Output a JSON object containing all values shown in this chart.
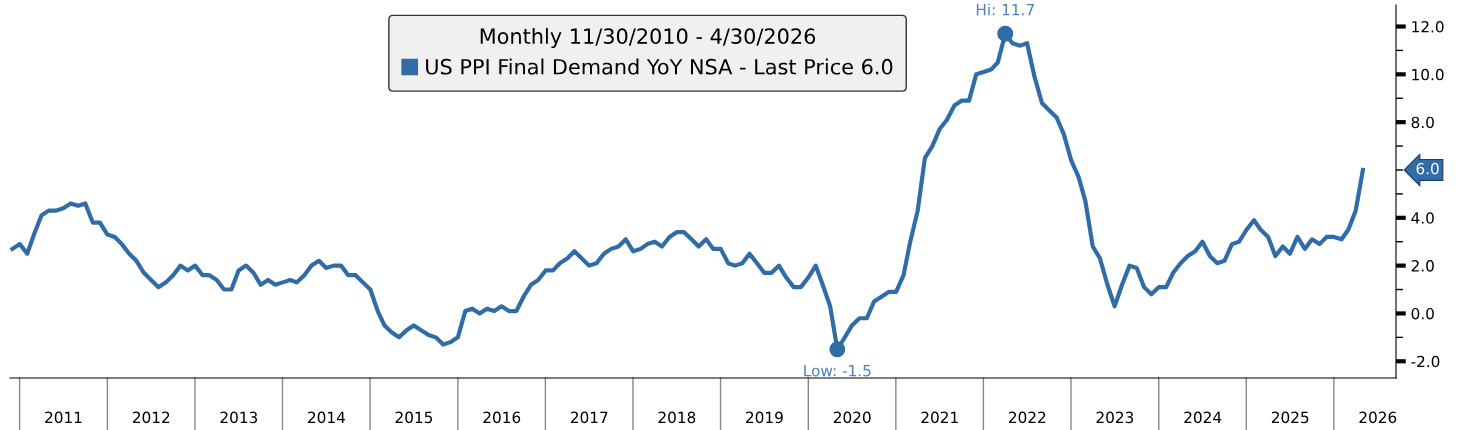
{
  "chart_data": {
    "type": "line",
    "legend_title": "Monthly 11/30/2010 - 4/30/2026",
    "legend": "top",
    "grid": false,
    "marker": "none",
    "line_style": "solid",
    "x": [
      "2010-11-30",
      "2010-12-31",
      "2011-01-31",
      "2011-02-28",
      "2011-03-31",
      "2011-04-30",
      "2011-05-31",
      "2011-06-30",
      "2011-07-31",
      "2011-08-31",
      "2011-09-30",
      "2011-10-31",
      "2011-11-30",
      "2011-12-31",
      "2012-01-31",
      "2012-02-29",
      "2012-03-31",
      "2012-04-30",
      "2012-05-31",
      "2012-06-30",
      "2012-07-31",
      "2012-08-31",
      "2012-09-30",
      "2012-10-31",
      "2012-11-30",
      "2012-12-31",
      "2013-01-31",
      "2013-02-28",
      "2013-03-31",
      "2013-04-30",
      "2013-05-31",
      "2013-06-30",
      "2013-07-31",
      "2013-08-31",
      "2013-09-30",
      "2013-10-31",
      "2013-11-30",
      "2013-12-31",
      "2014-01-31",
      "2014-02-28",
      "2014-03-31",
      "2014-04-30",
      "2014-05-31",
      "2014-06-30",
      "2014-07-31",
      "2014-08-31",
      "2014-09-30",
      "2014-10-31",
      "2014-11-30",
      "2014-12-31",
      "2015-01-31",
      "2015-02-28",
      "2015-03-31",
      "2015-04-30",
      "2015-05-31",
      "2015-06-30",
      "2015-07-31",
      "2015-08-31",
      "2015-09-30",
      "2015-10-31",
      "2015-11-30",
      "2015-12-31",
      "2016-01-31",
      "2016-02-29",
      "2016-03-31",
      "2016-04-30",
      "2016-05-31",
      "2016-06-30",
      "2016-07-31",
      "2016-08-31",
      "2016-09-30",
      "2016-10-31",
      "2016-11-30",
      "2016-12-31",
      "2017-01-31",
      "2017-02-28",
      "2017-03-31",
      "2017-04-30",
      "2017-05-31",
      "2017-06-30",
      "2017-07-31",
      "2017-08-31",
      "2017-09-30",
      "2017-10-31",
      "2017-11-30",
      "2017-12-31",
      "2018-01-31",
      "2018-02-28",
      "2018-03-31",
      "2018-04-30",
      "2018-05-31",
      "2018-06-30",
      "2018-07-31",
      "2018-08-31",
      "2018-09-30",
      "2018-10-31",
      "2018-11-30",
      "2018-12-31",
      "2019-01-31",
      "2019-02-28",
      "2019-03-31",
      "2019-04-30",
      "2019-05-31",
      "2019-06-30",
      "2019-07-31",
      "2019-08-31",
      "2019-09-30",
      "2019-10-31",
      "2019-11-30",
      "2019-12-31",
      "2020-01-31",
      "2020-02-29",
      "2020-03-31",
      "2020-04-30",
      "2020-05-31",
      "2020-06-30",
      "2020-07-31",
      "2020-08-31",
      "2020-09-30",
      "2020-10-31",
      "2020-11-30",
      "2020-12-31",
      "2021-01-31",
      "2021-02-28",
      "2021-03-31",
      "2021-04-30",
      "2021-05-31",
      "2021-06-30",
      "2021-07-31",
      "2021-08-31",
      "2021-09-30",
      "2021-10-31",
      "2021-11-30",
      "2021-12-31",
      "2022-01-31",
      "2022-02-28",
      "2022-03-31",
      "2022-04-30",
      "2022-05-31",
      "2022-06-30",
      "2022-07-31",
      "2022-08-31",
      "2022-09-30",
      "2022-10-31",
      "2022-11-30",
      "2022-12-31",
      "2023-01-31",
      "2023-02-28",
      "2023-03-31",
      "2023-04-30",
      "2023-05-31",
      "2023-06-30",
      "2023-07-31",
      "2023-08-31",
      "2023-09-30",
      "2023-10-31",
      "2023-11-30",
      "2023-12-31",
      "2024-01-31",
      "2024-02-29",
      "2024-03-31",
      "2024-04-30",
      "2024-05-31",
      "2024-06-30",
      "2024-07-31",
      "2024-08-31",
      "2024-09-30",
      "2024-10-31",
      "2024-11-30",
      "2024-12-31",
      "2025-01-31",
      "2025-02-28",
      "2025-03-31",
      "2025-04-30",
      "2025-05-31",
      "2025-06-30",
      "2025-07-31",
      "2025-08-31",
      "2025-09-30",
      "2025-10-31",
      "2025-11-30",
      "2025-12-31",
      "2026-01-31",
      "2026-02-28",
      "2026-03-31",
      "2026-04-30"
    ],
    "series": [
      {
        "name": "US PPI Final Demand YoY NSA - Last Price 6.0",
        "color": "#2f6ca8",
        "values": [
          2.7,
          2.9,
          2.5,
          3.3,
          4.1,
          4.3,
          4.3,
          4.4,
          4.6,
          4.5,
          4.6,
          3.8,
          3.8,
          3.3,
          3.2,
          2.9,
          2.5,
          2.2,
          1.7,
          1.4,
          1.1,
          1.3,
          1.6,
          2.0,
          1.8,
          2.0,
          1.6,
          1.6,
          1.4,
          1.0,
          1.0,
          1.8,
          2.0,
          1.7,
          1.2,
          1.4,
          1.2,
          1.3,
          1.4,
          1.3,
          1.6,
          2.0,
          2.2,
          1.9,
          2.0,
          2.0,
          1.6,
          1.6,
          1.3,
          1.0,
          0.1,
          -0.5,
          -0.8,
          -1.0,
          -0.7,
          -0.5,
          -0.7,
          -0.9,
          -1.0,
          -1.3,
          -1.2,
          -1.0,
          0.1,
          0.2,
          0.0,
          0.2,
          0.1,
          0.3,
          0.1,
          0.1,
          0.7,
          1.2,
          1.4,
          1.8,
          1.8,
          2.1,
          2.3,
          2.6,
          2.3,
          2.0,
          2.1,
          2.5,
          2.7,
          2.8,
          3.1,
          2.6,
          2.7,
          2.9,
          3.0,
          2.8,
          3.2,
          3.4,
          3.4,
          3.1,
          2.8,
          3.1,
          2.7,
          2.7,
          2.1,
          2.0,
          2.1,
          2.5,
          2.1,
          1.7,
          1.7,
          2.0,
          1.5,
          1.1,
          1.1,
          1.5,
          2.0,
          1.2,
          0.3,
          -1.5,
          -1.0,
          -0.5,
          -0.2,
          -0.2,
          0.5,
          0.7,
          0.9,
          0.9,
          1.6,
          3.0,
          4.3,
          6.5,
          7.0,
          7.7,
          8.1,
          8.7,
          8.9,
          8.9,
          10.0,
          10.1,
          10.2,
          10.5,
          11.7,
          11.3,
          11.2,
          11.3,
          9.9,
          8.8,
          8.5,
          8.2,
          7.5,
          6.4,
          5.7,
          4.7,
          2.8,
          2.3,
          1.2,
          0.3,
          1.2,
          2.0,
          1.9,
          1.1,
          0.8,
          1.1,
          1.1,
          1.7,
          2.1,
          2.4,
          2.6,
          3.0,
          2.4,
          2.1,
          2.2,
          2.9,
          3.0,
          3.5,
          3.9,
          3.5,
          3.2,
          2.4,
          2.8,
          2.5,
          3.2,
          2.7,
          3.1,
          2.9,
          3.2,
          3.2,
          3.1,
          3.5,
          4.3,
          6.0
        ]
      },
      {
        "type": "scatter",
        "marker": "circle",
        "color": "#2f6ca8",
        "x": [
          "2022-03-31",
          "2020-04-30"
        ],
        "values": [
          11.7,
          -1.5
        ]
      }
    ],
    "annotations": [
      {
        "text": "Hi: 11.7",
        "x": "2022-03-31",
        "y": 11.7
      },
      {
        "text": "Low: -1.5",
        "x": "2020-04-30",
        "y": -1.5
      },
      "6.0"
    ],
    "xlim": [
      "2010-11-20",
      "2026-09-15"
    ],
    "xticks": [
      {
        "value": "2011-07-01",
        "label": "2011"
      },
      {
        "value": "2012-07-01",
        "label": "2012"
      },
      {
        "value": "2013-07-01",
        "label": "2013"
      },
      {
        "value": "2014-07-01",
        "label": "2014"
      },
      {
        "value": "2015-07-01",
        "label": "2015"
      },
      {
        "value": "2016-07-01",
        "label": "2016"
      },
      {
        "value": "2017-07-01",
        "label": "2017"
      },
      {
        "value": "2018-07-01",
        "label": "2018"
      },
      {
        "value": "2019-07-01",
        "label": "2019"
      },
      {
        "value": "2020-07-01",
        "label": "2020"
      },
      {
        "value": "2021-07-01",
        "label": "2021"
      },
      {
        "value": "2022-07-01",
        "label": "2022"
      },
      {
        "value": "2023-07-01",
        "label": "2023"
      },
      {
        "value": "2024-07-01",
        "label": "2024"
      },
      {
        "value": "2025-07-01",
        "label": "2025"
      },
      {
        "value": "2026-07-01",
        "label": "2026"
      }
    ],
    "ylim": [
      -2.7,
      12.9
    ],
    "yticks": [
      {
        "value": -2,
        "label": "-2.0"
      },
      {
        "value": -1,
        "label": null
      },
      {
        "value": 0,
        "label": "0.0"
      },
      {
        "value": 1,
        "label": null
      },
      {
        "value": 2,
        "label": "2.0"
      },
      {
        "value": 3,
        "label": null
      },
      {
        "value": 4,
        "label": "4.0"
      },
      {
        "value": 5,
        "label": null
      },
      {
        "value": 6,
        "label": null
      },
      {
        "value": 7,
        "label": null
      },
      {
        "value": 8,
        "label": "8.0"
      },
      {
        "value": 9,
        "label": null
      },
      {
        "value": 10,
        "label": "10.0"
      },
      {
        "value": 11,
        "label": null
      },
      {
        "value": 12,
        "label": "12.0"
      }
    ]
  }
}
